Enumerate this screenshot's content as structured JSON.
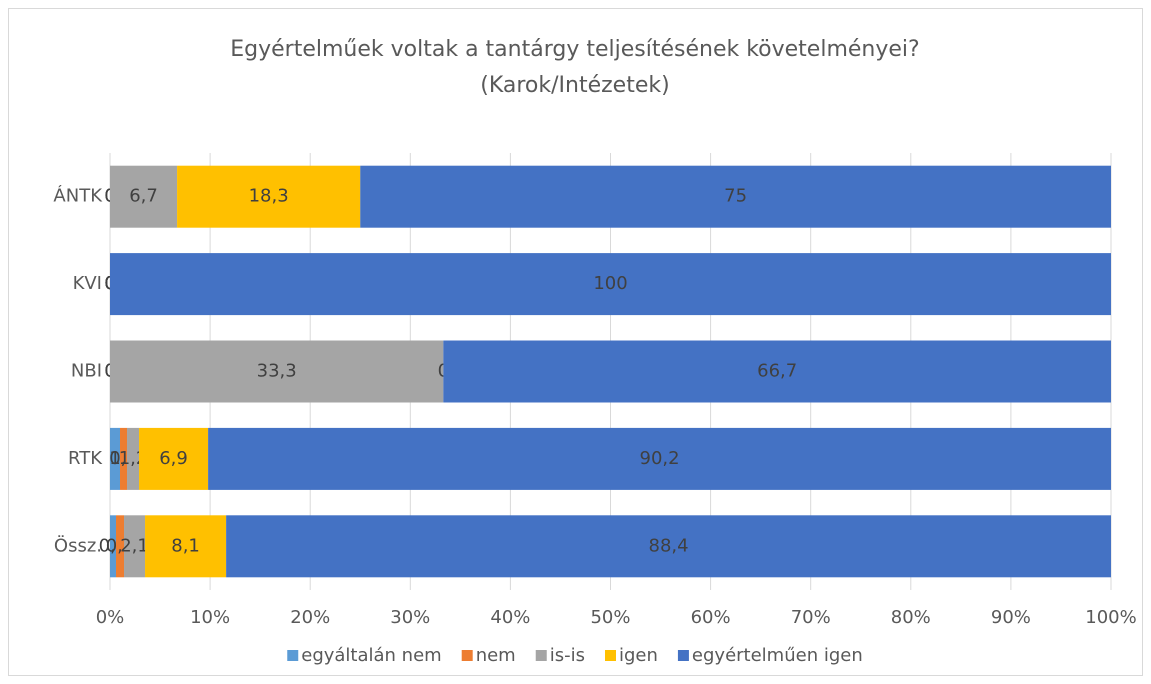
{
  "chart_data": {
    "type": "stacked_barh",
    "title": "Egyértelműek voltak a tantárgy teljesítésének követelményei?",
    "subtitle": "(Karok/Intézetek)",
    "categories": [
      "ÁNTK",
      "KVI",
      "NBI",
      "RTK",
      "Össz."
    ],
    "series": [
      {
        "name": "egyáltalán nem",
        "color": "#5b9bd5",
        "values": [
          0,
          0,
          0,
          1,
          0.6
        ],
        "value_labels": [
          "0",
          "0",
          "0",
          "1",
          "0,6"
        ]
      },
      {
        "name": "nem",
        "color": "#ed7d31",
        "values": [
          0,
          0,
          0,
          0.7,
          0.8
        ],
        "value_labels": [
          "0",
          "0",
          "0",
          "0,7",
          "0,8"
        ]
      },
      {
        "name": "is-is",
        "color": "#a5a5a5",
        "values": [
          6.7,
          0,
          33.3,
          1.2,
          2.1
        ],
        "value_labels": [
          "6,7",
          "0",
          "33,3",
          "1,2",
          "2,1"
        ]
      },
      {
        "name": "igen",
        "color": "#ffc000",
        "values": [
          18.3,
          0,
          0,
          6.9,
          8.1
        ],
        "value_labels": [
          "18,3",
          "0",
          "0",
          "6,9",
          "8,1"
        ]
      },
      {
        "name": "egyértelműen igen",
        "color": "#4472c4",
        "values": [
          75,
          100,
          66.7,
          90.2,
          88.4
        ],
        "value_labels": [
          "75",
          "100",
          "66,7",
          "90,2",
          "88,4"
        ]
      }
    ],
    "xlim": [
      0,
      100
    ],
    "xticks": [
      {
        "value": 0,
        "label": "0%"
      },
      {
        "value": 10,
        "label": "10%"
      },
      {
        "value": 20,
        "label": "20%"
      },
      {
        "value": 30,
        "label": "30%"
      },
      {
        "value": 40,
        "label": "40%"
      },
      {
        "value": 50,
        "label": "50%"
      },
      {
        "value": 60,
        "label": "60%"
      },
      {
        "value": 70,
        "label": "70%"
      },
      {
        "value": 80,
        "label": "80%"
      },
      {
        "value": 90,
        "label": "90%"
      },
      {
        "value": 100,
        "label": "100%"
      }
    ],
    "grid": true,
    "legend": "bottom"
  }
}
